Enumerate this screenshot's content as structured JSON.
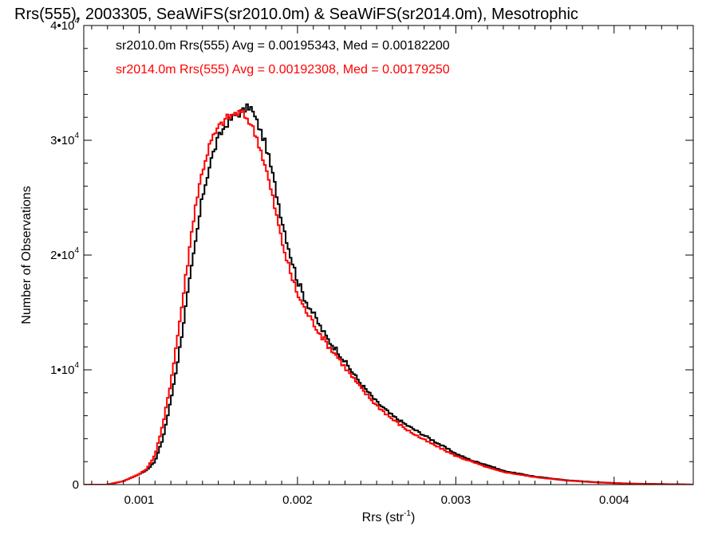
{
  "chart_data": {
    "type": "line",
    "title": "Rrs(555), 2003305, SeaWiFS(sr2010.0m) & SeaWiFS(sr2014.0m), Mesotrophic",
    "xlabel_base": "Rrs (str",
    "xlabel_sup": "-1",
    "xlabel_close": ")",
    "ylabel": "Number of Observations",
    "xlim": [
      0.00065,
      0.0045
    ],
    "ylim": [
      0,
      40000
    ],
    "x_ticks": [
      {
        "value": 0.001,
        "label": "0.001"
      },
      {
        "value": 0.002,
        "label": "0.002"
      },
      {
        "value": 0.003,
        "label": "0.003"
      },
      {
        "value": 0.004,
        "label": "0.004"
      }
    ],
    "y_ticks": [
      {
        "value": 0,
        "base": "0",
        "exp": ""
      },
      {
        "value": 10000,
        "base": "1•10",
        "exp": "4"
      },
      {
        "value": 20000,
        "base": "2•10",
        "exp": "4"
      },
      {
        "value": 30000,
        "base": "3•10",
        "exp": "4"
      },
      {
        "value": 40000,
        "base": "4•10",
        "exp": "4"
      }
    ],
    "legend": [
      {
        "text": "sr2010.0m Rrs(555) Avg = 0.00195343, Med = 0.00182200",
        "color": "#000000"
      },
      {
        "text": "sr2014.0m Rrs(555) Avg = 0.00192308, Med = 0.00179250",
        "color": "#ff0000"
      }
    ],
    "legend_position": "top-left",
    "series": [
      {
        "color": "#000000",
        "x": [
          0.00065,
          0.0008,
          0.0009,
          0.001,
          0.00105,
          0.0011,
          0.00115,
          0.0012,
          0.00125,
          0.0013,
          0.00135,
          0.0014,
          0.00145,
          0.0015,
          0.00155,
          0.0016,
          0.00165,
          0.0017,
          0.00175,
          0.0018,
          0.00185,
          0.0019,
          0.00195,
          0.002,
          0.00205,
          0.0021,
          0.00215,
          0.0022,
          0.00225,
          0.0023,
          0.0024,
          0.0025,
          0.0026,
          0.0027,
          0.0028,
          0.0029,
          0.003,
          0.0031,
          0.0032,
          0.0033,
          0.0035,
          0.0037,
          0.0039,
          0.0041,
          0.0043,
          0.0045
        ],
        "y": [
          0,
          0,
          300,
          900,
          1300,
          2000,
          4000,
          7300,
          11300,
          16000,
          20500,
          25100,
          28100,
          30200,
          31400,
          32100,
          32500,
          33000,
          31400,
          29600,
          26600,
          23200,
          20300,
          17800,
          16100,
          14900,
          13600,
          12500,
          11700,
          10700,
          8800,
          7200,
          6000,
          5100,
          4300,
          3500,
          2700,
          2100,
          1700,
          1200,
          700,
          380,
          200,
          90,
          50,
          0
        ]
      },
      {
        "color": "#ff0000",
        "x": [
          0.00065,
          0.0008,
          0.0009,
          0.001,
          0.00105,
          0.0011,
          0.00115,
          0.0012,
          0.00125,
          0.0013,
          0.00135,
          0.0014,
          0.00145,
          0.0015,
          0.00155,
          0.0016,
          0.00165,
          0.0017,
          0.00175,
          0.0018,
          0.00185,
          0.0019,
          0.00195,
          0.002,
          0.00205,
          0.0021,
          0.00215,
          0.0022,
          0.00225,
          0.0023,
          0.0024,
          0.0025,
          0.0026,
          0.0027,
          0.0028,
          0.0029,
          0.003,
          0.0031,
          0.0032,
          0.0033,
          0.0035,
          0.0037,
          0.0039,
          0.0041,
          0.0043,
          0.0045
        ],
        "y": [
          0,
          0,
          300,
          900,
          1400,
          2600,
          5200,
          9000,
          13600,
          18700,
          23900,
          27400,
          29800,
          31100,
          31900,
          32300,
          32400,
          31600,
          30000,
          27600,
          24600,
          21300,
          18700,
          16600,
          15200,
          14100,
          13000,
          12000,
          11200,
          10200,
          8400,
          6900,
          5700,
          4700,
          3900,
          3200,
          2500,
          2000,
          1500,
          1100,
          650,
          350,
          180,
          80,
          40,
          0
        ]
      }
    ]
  }
}
